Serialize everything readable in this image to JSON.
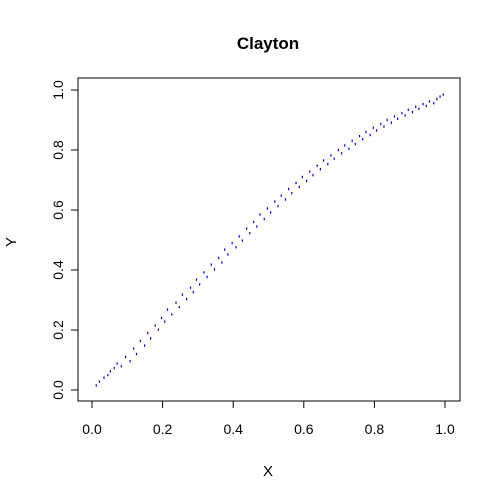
{
  "chart_data": {
    "type": "scatter",
    "title": "Clayton",
    "xlabel": "X",
    "ylabel": "Y",
    "xlim": [
      0,
      1
    ],
    "ylim": [
      0,
      1
    ],
    "x_ticks": [
      "0.0",
      "0.2",
      "0.4",
      "0.6",
      "0.8",
      "1.0"
    ],
    "y_ticks": [
      "0.0",
      "0.2",
      "0.4",
      "0.6",
      "0.8",
      "1.0"
    ],
    "x_tick_values": [
      0,
      0.2,
      0.4,
      0.6,
      0.8,
      1.0
    ],
    "y_tick_values": [
      0,
      0.2,
      0.4,
      0.6,
      0.8,
      1.0
    ],
    "point_color": "#0000CD",
    "grid": false,
    "legend": "none",
    "series": [
      {
        "x": [
          0.012,
          0.021,
          0.034,
          0.045,
          0.052,
          0.063,
          0.071,
          0.083,
          0.095,
          0.108,
          0.118,
          0.126,
          0.137,
          0.149,
          0.158,
          0.166,
          0.179,
          0.188,
          0.197,
          0.206,
          0.214,
          0.226,
          0.238,
          0.247,
          0.256,
          0.268,
          0.279,
          0.287,
          0.296,
          0.305,
          0.317,
          0.326,
          0.338,
          0.347,
          0.359,
          0.368,
          0.376,
          0.385,
          0.397,
          0.408,
          0.417,
          0.426,
          0.438,
          0.447,
          0.458,
          0.467,
          0.476,
          0.488,
          0.497,
          0.506,
          0.518,
          0.527,
          0.536,
          0.548,
          0.557,
          0.566,
          0.578,
          0.587,
          0.596,
          0.608,
          0.617,
          0.626,
          0.638,
          0.647,
          0.656,
          0.668,
          0.677,
          0.686,
          0.698,
          0.707,
          0.716,
          0.728,
          0.737,
          0.746,
          0.758,
          0.767,
          0.776,
          0.788,
          0.797,
          0.806,
          0.818,
          0.827,
          0.836,
          0.848,
          0.857,
          0.866,
          0.878,
          0.887,
          0.896,
          0.908,
          0.917,
          0.926,
          0.938,
          0.947,
          0.956,
          0.968,
          0.977,
          0.986,
          0.995
        ],
        "y": [
          0.015,
          0.028,
          0.041,
          0.05,
          0.062,
          0.073,
          0.088,
          0.079,
          0.11,
          0.096,
          0.138,
          0.12,
          0.163,
          0.148,
          0.19,
          0.172,
          0.215,
          0.201,
          0.24,
          0.228,
          0.268,
          0.252,
          0.291,
          0.276,
          0.318,
          0.303,
          0.341,
          0.326,
          0.368,
          0.352,
          0.392,
          0.377,
          0.418,
          0.402,
          0.44,
          0.425,
          0.468,
          0.452,
          0.49,
          0.476,
          0.512,
          0.498,
          0.538,
          0.523,
          0.56,
          0.545,
          0.585,
          0.57,
          0.605,
          0.592,
          0.628,
          0.613,
          0.648,
          0.635,
          0.67,
          0.656,
          0.69,
          0.677,
          0.71,
          0.697,
          0.728,
          0.716,
          0.748,
          0.736,
          0.765,
          0.753,
          0.782,
          0.771,
          0.8,
          0.789,
          0.815,
          0.804,
          0.831,
          0.82,
          0.846,
          0.836,
          0.86,
          0.85,
          0.874,
          0.865,
          0.887,
          0.878,
          0.9,
          0.891,
          0.912,
          0.904,
          0.923,
          0.915,
          0.934,
          0.926,
          0.944,
          0.937,
          0.953,
          0.947,
          0.962,
          0.956,
          0.97,
          0.978,
          0.985
        ]
      }
    ]
  }
}
